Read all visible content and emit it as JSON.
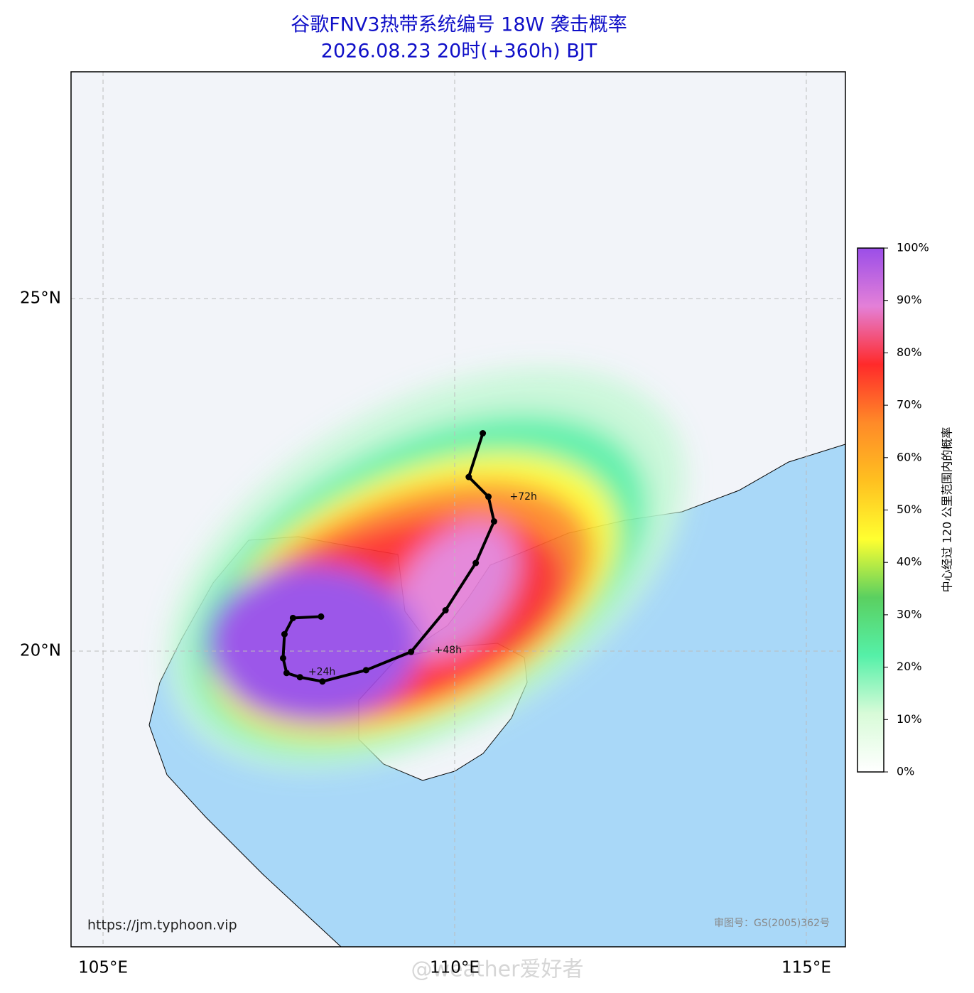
{
  "chart_data": {
    "type": "track",
    "title": "谷歌FNV3热带系统编号 18W 袭击概率",
    "subtitle": "2026.08.23 20时(+360h) BJT",
    "xlim": [
      104.545,
      115.556
    ],
    "ylim": [
      15.807,
      28.216
    ],
    "xticks": [
      {
        "value": 105,
        "label": "105°E"
      },
      {
        "value": 110,
        "label": "110°E"
      },
      {
        "value": 115,
        "label": "115°E"
      }
    ],
    "yticks": [
      {
        "value": 20,
        "label": "20°N"
      },
      {
        "value": 25,
        "label": "25°N"
      }
    ],
    "grid": true,
    "track": {
      "color": "#000000",
      "lon": [
        108.1,
        107.7,
        107.58,
        107.56,
        107.61,
        107.8,
        108.12,
        108.74,
        109.38,
        109.87,
        110.3,
        110.56,
        110.48,
        110.2,
        110.4
      ],
      "lat": [
        20.49,
        20.47,
        20.24,
        19.9,
        19.69,
        19.63,
        19.57,
        19.73,
        19.99,
        20.58,
        21.25,
        21.84,
        22.19,
        22.47,
        23.09
      ]
    },
    "annotations": [
      "+24h",
      "+48h",
      "+72h"
    ],
    "colorbar": {
      "label": "中心经过 120 公里范围内的概率",
      "lim": [
        0,
        100
      ],
      "colors": [
        "#ffffff",
        "#d8fbd8",
        "#55f0a8",
        "#5ad060",
        "#ffff30",
        "#ffc020",
        "#ff8a28",
        "#ff2a2a",
        "#e480d8",
        "#9b4ee8"
      ],
      "ticks": [
        {
          "value": 0,
          "label": "0%"
        },
        {
          "value": 10,
          "label": "10%"
        },
        {
          "value": 20,
          "label": "20%"
        },
        {
          "value": 30,
          "label": "30%"
        },
        {
          "value": 40,
          "label": "40%"
        },
        {
          "value": 50,
          "label": "50%"
        },
        {
          "value": 60,
          "label": "60%"
        },
        {
          "value": 70,
          "label": "70%"
        },
        {
          "value": 80,
          "label": "80%"
        },
        {
          "value": 90,
          "label": "90%"
        },
        {
          "value": 100,
          "label": "100%"
        }
      ]
    },
    "source": "https://jm.typhoon.vip",
    "review_number": "审图号：GS(2005)362号",
    "watermark": "@weather爱好者"
  }
}
